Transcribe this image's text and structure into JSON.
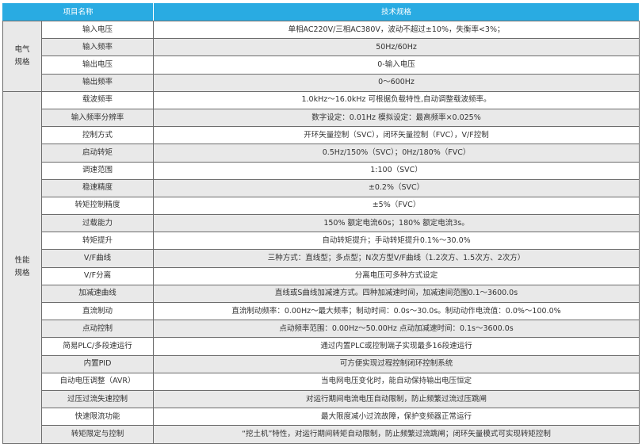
{
  "header": {
    "item_name": "项目名称",
    "spec": "技术规格"
  },
  "colors": {
    "header_bg": "#29abe2",
    "alt_row_bg": "#e9e9e9"
  },
  "groups": [
    {
      "label_lines": [
        "电气",
        "规格"
      ],
      "rows": [
        {
          "name": "输入电压",
          "value": "单相AC220V/三相AC380V，波动不超过±10%，失衡率<3%；"
        },
        {
          "name": "输入频率",
          "value": "50Hz/60Hz"
        },
        {
          "name": "输出电压",
          "value": "0-输入电压"
        },
        {
          "name": "输出频率",
          "value": "0～600Hz"
        }
      ]
    },
    {
      "label_lines": [
        "性能",
        "规格"
      ],
      "rows": [
        {
          "name": "载波频率",
          "value": "1.0kHz～16.0kHz 可根据负载特性,自动调整载波频率。"
        },
        {
          "name": "输入频率分辨率",
          "value": "数字设定：0.01Hz 模拟设定：最高频率×0.025%"
        },
        {
          "name": "控制方式",
          "value": "开环矢量控制（SVC），闭环矢量控制（FVC），V/F控制"
        },
        {
          "name": "启动转矩",
          "value": "0.5Hz/150%（SVC）；0Hz/180%（FVC）"
        },
        {
          "name": "调速范围",
          "value": "1:100（SVC）"
        },
        {
          "name": "稳速精度",
          "value": "±0.2%（SVC）"
        },
        {
          "name": "转矩控制精度",
          "value": "±5%（FVC）"
        },
        {
          "name": "过载能力",
          "value": "150% 额定电流60s；180% 额定电流3s。"
        },
        {
          "name": "转矩提升",
          "value": "自动转矩提升；手动转矩提升0.1%～30.0%"
        },
        {
          "name": "V/F曲线",
          "value": "三种方式：直线型；多点型；N次方型V/F曲线（1.2次方、1.5次方、2次方）"
        },
        {
          "name": "V/F分离",
          "value": "分离电压可多种方式设定"
        },
        {
          "name": "加减速曲线",
          "value": "直线或S曲线加减速方式。四种加减速时间，加减速间范围0.1～3600.0s"
        },
        {
          "name": "直流制动",
          "value": "直流制动频率：0.00Hz～最大频率；制动时间：0.0s～30.0s。制动动作电流值：0.0%～100.0%"
        },
        {
          "name": "点动控制",
          "value": "点动频率范围：0.00Hz～50.00Hz 点动加减速时间：0.1s～3600.0s"
        },
        {
          "name": "简易PLC/多段速运行",
          "value": "通过内置PLC或控制端子实现最多16段速运行"
        },
        {
          "name": "内置PID",
          "value": "可方便实现过程控制闭环控制系统"
        },
        {
          "name": "自动电压调整（AVR）",
          "value": "当电网电压变化时，能自动保持输出电压恒定"
        },
        {
          "name": "过压过流失速控制",
          "value": "对运行期间电流电压自动限制，防止频繁过流过压跳闸"
        },
        {
          "name": "快速限流功能",
          "value": "最大限度减小过流故障，保护变频器正常运行"
        },
        {
          "name": "转矩限定与控制",
          "value": "“挖土机”特性，对运行期间转矩自动限制，防止频繁过流跳闸；闭环矢量模式可实现转矩控制"
        }
      ]
    }
  ]
}
